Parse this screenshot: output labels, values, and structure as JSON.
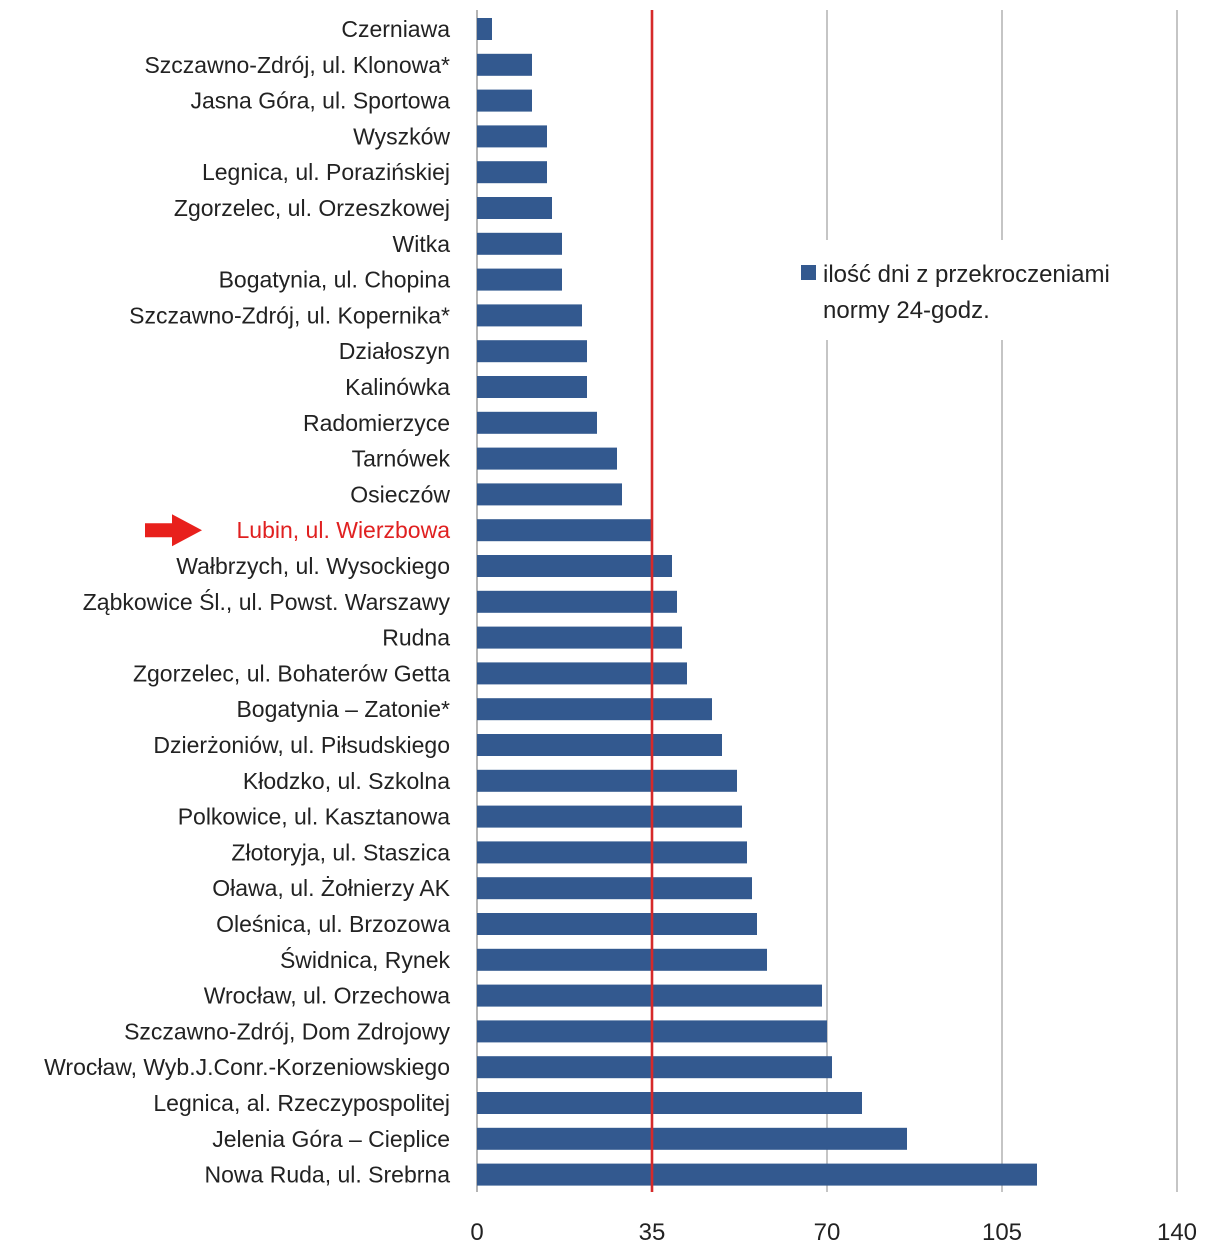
{
  "chart_data": {
    "type": "bar",
    "orientation": "horizontal",
    "categories": [
      "Czerniawa",
      "Szczawno-Zdrój, ul. Klonowa*",
      "Jasna Góra, ul. Sportowa",
      "Wyszków",
      "Legnica, ul. Porazińskiej",
      "Zgorzelec, ul. Orzeszkowej",
      "Witka",
      "Bogatynia, ul. Chopina",
      "Szczawno-Zdrój, ul. Kopernika*",
      "Działoszyn",
      "Kalinówka",
      "Radomierzyce",
      "Tarnówek",
      "Osieczów",
      "Lubin, ul. Wierzbowa",
      "Wałbrzych, ul. Wysockiego",
      "Ząbkowice Śl., ul. Powst. Warszawy",
      "Rudna",
      "Zgorzelec, ul. Bohaterów Getta",
      "Bogatynia – Zatonie*",
      "Dzierżoniów, ul. Piłsudskiego",
      "Kłodzko, ul. Szkolna",
      "Polkowice, ul. Kasztanowa",
      "Złotoryja, ul. Staszica",
      "Oława, ul. Żołnierzy AK",
      "Oleśnica, ul. Brzozowa",
      "Świdnica, Rynek",
      "Wrocław, ul. Orzechowa",
      "Szczawno-Zdrój, Dom Zdrojowy",
      "Wrocław, Wyb.J.Conr.-Korzeniowskiego",
      "Legnica, al. Rzeczypospolitej",
      "Jelenia Góra – Cieplice",
      "Nowa Ruda, ul. Srebrna"
    ],
    "series": [
      {
        "name": "ilość dni z przekroczeniami normy 24-godz.",
        "values": [
          3,
          11,
          11,
          14,
          14,
          15,
          17,
          17,
          21,
          22,
          22,
          24,
          28,
          29,
          35,
          39,
          40,
          41,
          42,
          47,
          49,
          52,
          53,
          54,
          55,
          56,
          58,
          69,
          70,
          71,
          77,
          86,
          112
        ]
      }
    ],
    "highlight_category": "Lubin, ul. Wierzbowa",
    "reference_line": 35,
    "x_ticks": [
      0,
      35,
      70,
      105,
      140
    ],
    "xlim": [
      0,
      140
    ],
    "grid": "vertical",
    "legend_position": "upper-right, inside plot",
    "legend_lines": [
      "ilość dni z przekroczeniami",
      "normy  24-godz."
    ],
    "colors": {
      "bar": "#33598f",
      "reference_line": "#d62a2a",
      "highlight_label": "#e02020",
      "arrow": "#e8201c",
      "grid": "#a6a6a6",
      "text": "#222222"
    }
  }
}
